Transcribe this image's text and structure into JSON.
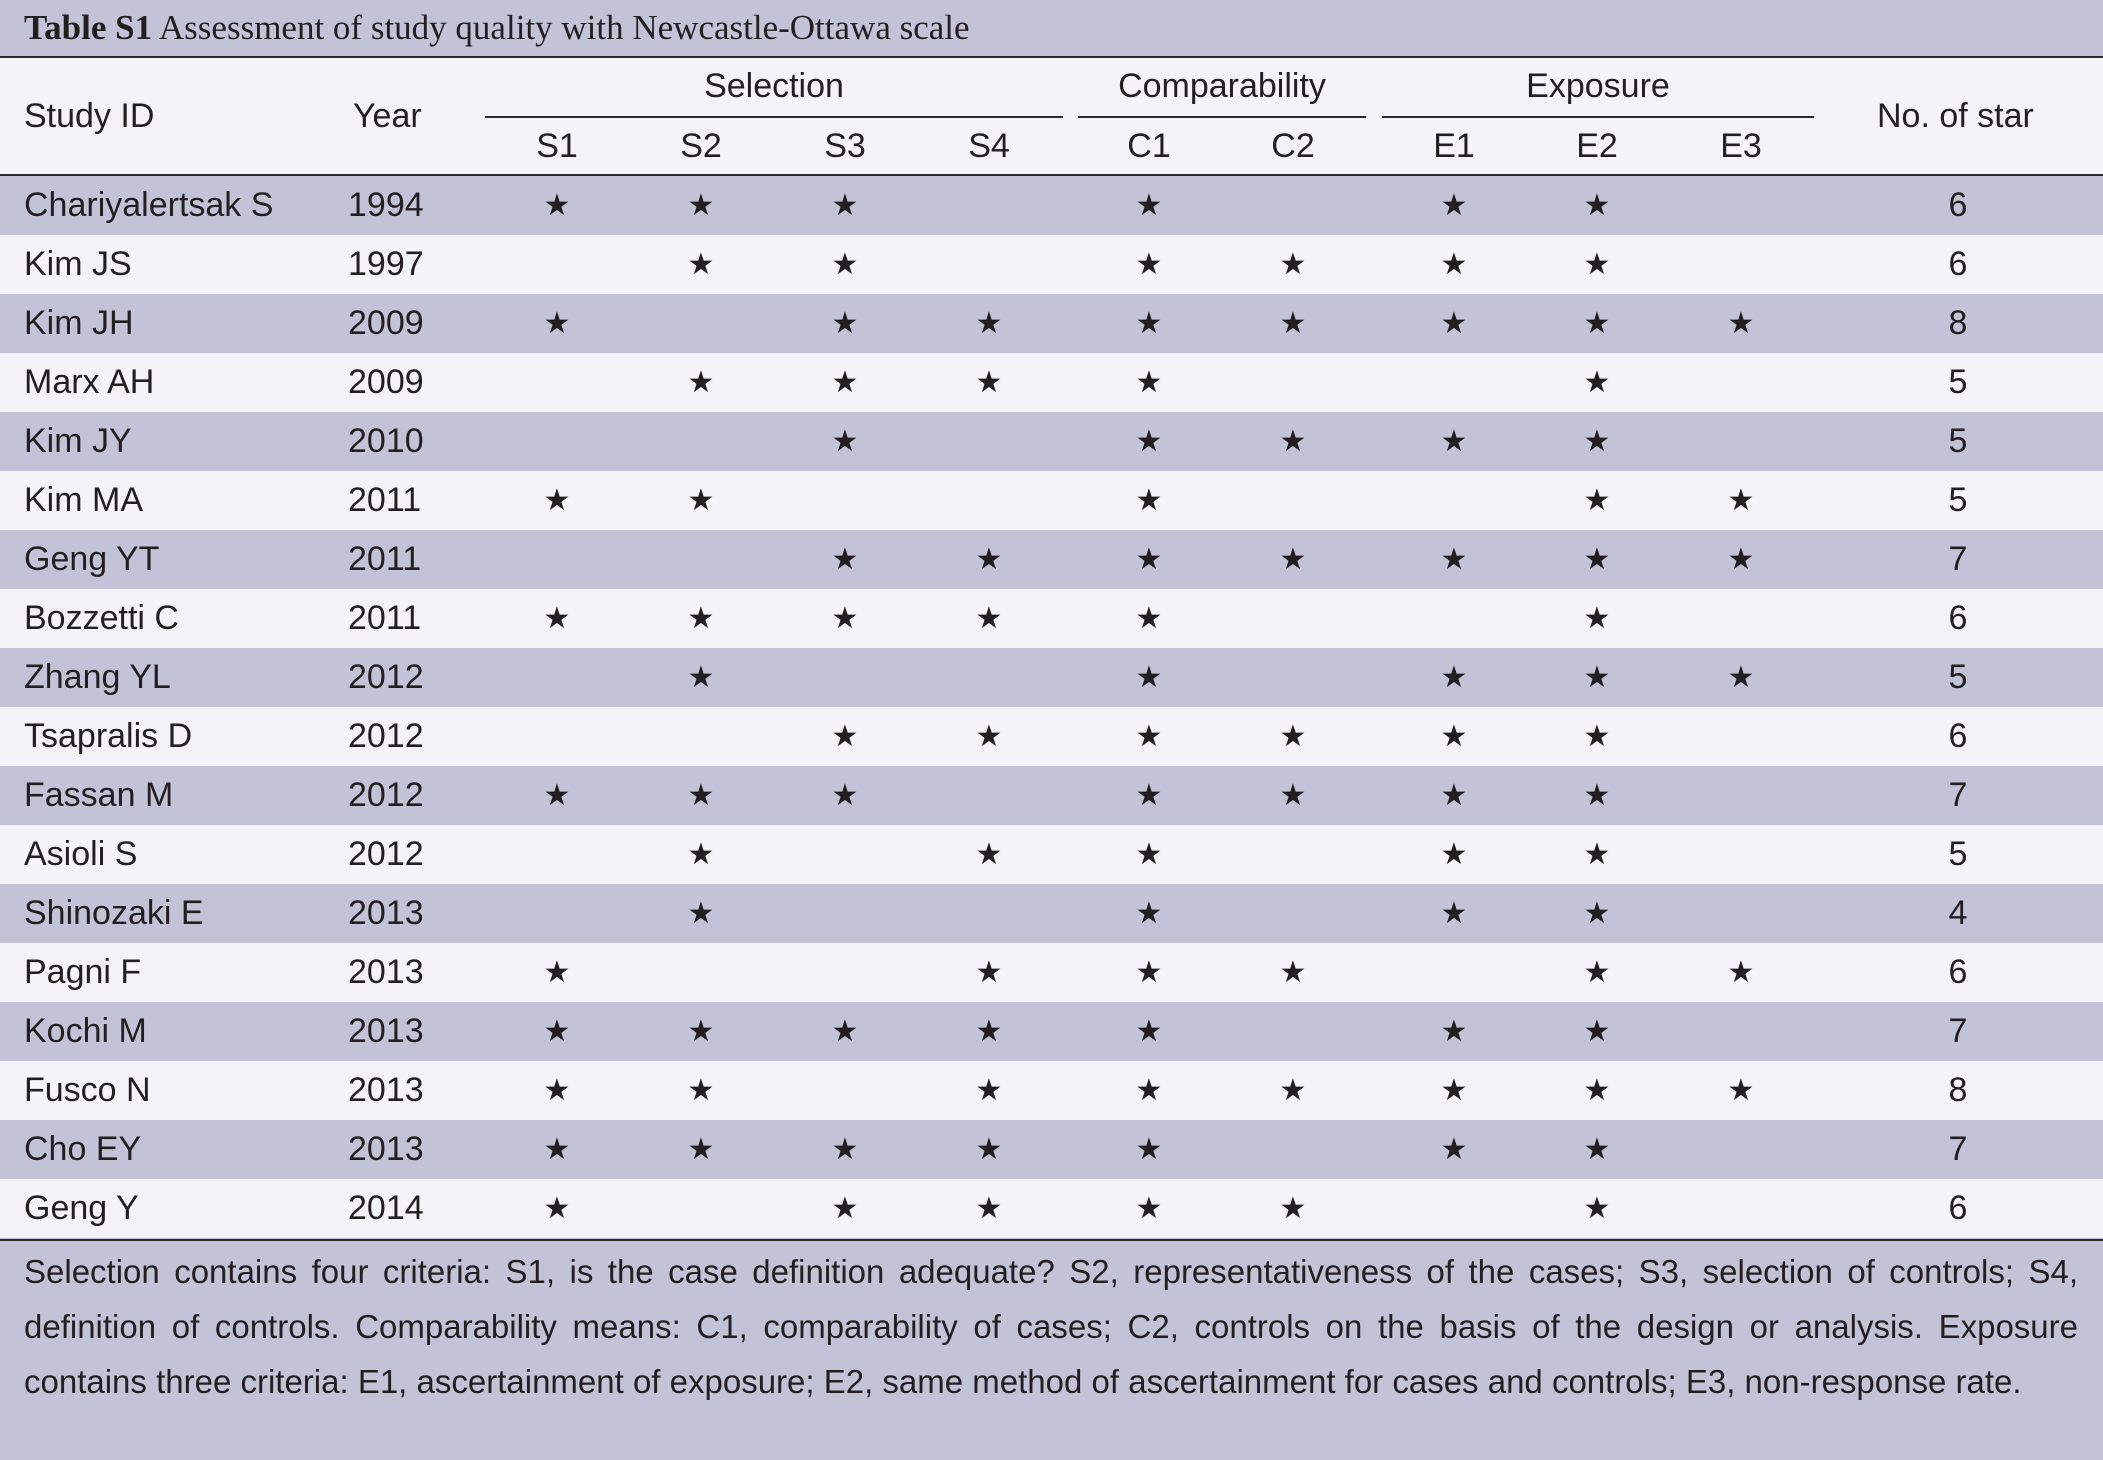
{
  "title": {
    "label": "Table S1",
    "text": "Assessment of study quality with Newcastle-Ottawa scale"
  },
  "headers": {
    "study_id": "Study ID",
    "year": "Year",
    "groups": {
      "selection": "Selection",
      "comparability": "Comparability",
      "exposure": "Exposure"
    },
    "criteria": [
      "S1",
      "S2",
      "S3",
      "S4",
      "C1",
      "C2",
      "E1",
      "E2",
      "E3"
    ],
    "total": "No. of star"
  },
  "star_glyph": "★",
  "rows": [
    {
      "study": "Chariyalertsak S",
      "year": "1994",
      "stars": [
        1,
        1,
        1,
        0,
        1,
        0,
        1,
        1,
        0
      ],
      "total": "6"
    },
    {
      "study": "Kim JS",
      "year": "1997",
      "stars": [
        0,
        1,
        1,
        0,
        1,
        1,
        1,
        1,
        0
      ],
      "total": "6"
    },
    {
      "study": "Kim JH",
      "year": "2009",
      "stars": [
        1,
        0,
        1,
        1,
        1,
        1,
        1,
        1,
        1
      ],
      "total": "8"
    },
    {
      "study": "Marx AH",
      "year": "2009",
      "stars": [
        0,
        1,
        1,
        1,
        1,
        0,
        0,
        1,
        0
      ],
      "total": "5"
    },
    {
      "study": "Kim JY",
      "year": "2010",
      "stars": [
        0,
        0,
        1,
        0,
        1,
        1,
        1,
        1,
        0
      ],
      "total": "5"
    },
    {
      "study": "Kim MA",
      "year": "2011",
      "stars": [
        1,
        1,
        0,
        0,
        1,
        0,
        0,
        1,
        1
      ],
      "total": "5"
    },
    {
      "study": "Geng YT",
      "year": "2011",
      "stars": [
        0,
        0,
        1,
        1,
        1,
        1,
        1,
        1,
        1
      ],
      "total": "7"
    },
    {
      "study": "Bozzetti C",
      "year": "2011",
      "stars": [
        1,
        1,
        1,
        1,
        1,
        0,
        0,
        1,
        0
      ],
      "total": "6"
    },
    {
      "study": "Zhang YL",
      "year": "2012",
      "stars": [
        0,
        1,
        0,
        0,
        1,
        0,
        1,
        1,
        1
      ],
      "total": "5"
    },
    {
      "study": "Tsapralis D",
      "year": "2012",
      "stars": [
        0,
        0,
        1,
        1,
        1,
        1,
        1,
        1,
        0
      ],
      "total": "6"
    },
    {
      "study": "Fassan M",
      "year": "2012",
      "stars": [
        1,
        1,
        1,
        0,
        1,
        1,
        1,
        1,
        0
      ],
      "total": "7"
    },
    {
      "study": "Asioli S",
      "year": "2012",
      "stars": [
        0,
        1,
        0,
        1,
        1,
        0,
        1,
        1,
        0
      ],
      "total": "5"
    },
    {
      "study": "Shinozaki E",
      "year": "2013",
      "stars": [
        0,
        1,
        0,
        0,
        1,
        0,
        1,
        1,
        0
      ],
      "total": "4"
    },
    {
      "study": "Pagni F",
      "year": "2013",
      "stars": [
        1,
        0,
        0,
        1,
        1,
        1,
        0,
        1,
        1
      ],
      "total": "6"
    },
    {
      "study": "Kochi M",
      "year": "2013",
      "stars": [
        1,
        1,
        1,
        1,
        1,
        0,
        1,
        1,
        0
      ],
      "total": "7"
    },
    {
      "study": "Fusco N",
      "year": "2013",
      "stars": [
        1,
        1,
        0,
        1,
        1,
        1,
        1,
        1,
        1
      ],
      "total": "8"
    },
    {
      "study": "Cho EY",
      "year": "2013",
      "stars": [
        1,
        1,
        1,
        1,
        1,
        0,
        1,
        1,
        0
      ],
      "total": "7"
    },
    {
      "study": "Geng Y",
      "year": "2014",
      "stars": [
        1,
        0,
        1,
        1,
        1,
        1,
        0,
        1,
        0
      ],
      "total": "6"
    }
  ],
  "footnote": "Selection contains four criteria: S1, is the case definition adequate? S2, representativeness of the cases; S3, selection of controls; S4, definition of controls. Comparability means: C1, comparability of cases; C2, controls on the basis of the design or analysis. Exposure contains three criteria: E1, ascertainment of exposure; E2, same method of ascertainment for cases and controls; E3, non-response rate."
}
